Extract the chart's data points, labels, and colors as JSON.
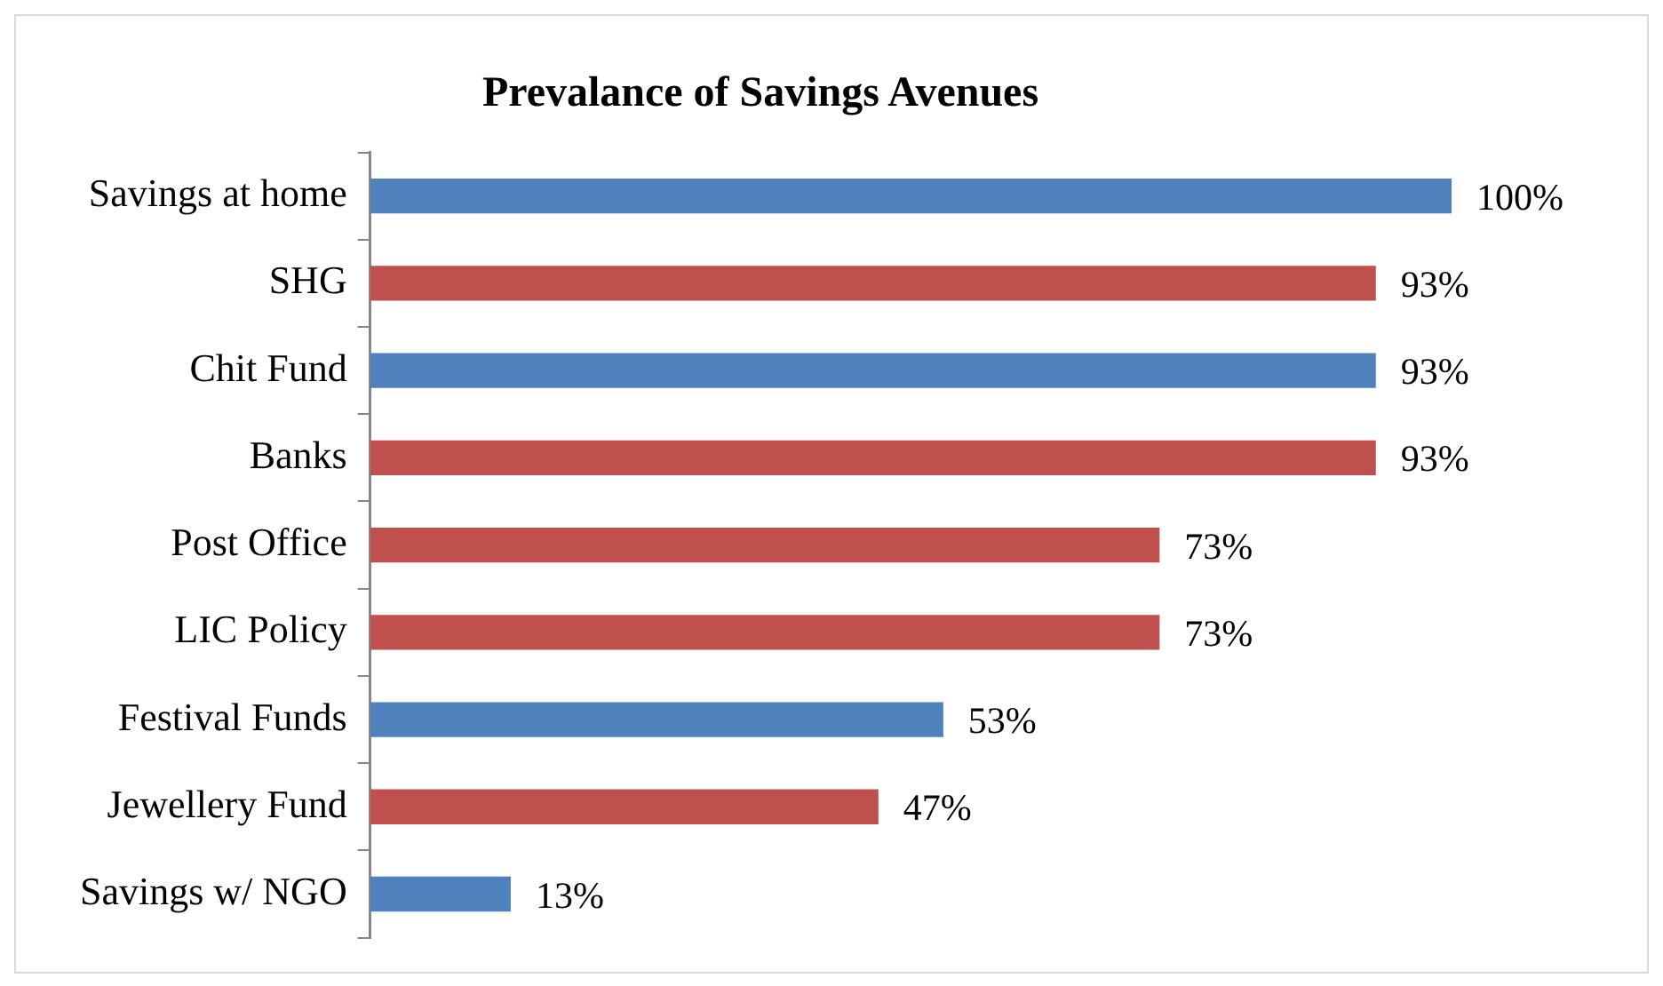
{
  "chart_data": {
    "type": "bar",
    "orientation": "horizontal",
    "title": "Prevalance of Savings Avenues",
    "categories": [
      "Savings at home",
      "SHG",
      "Chit Fund",
      "Banks",
      "Post Office",
      "LIC Policy",
      "Festival Funds",
      "Jewellery Fund",
      "Savings w/ NGO"
    ],
    "values": [
      100,
      93,
      93,
      93,
      73,
      73,
      53,
      47,
      13
    ],
    "colors": [
      "#4f81bd",
      "#c0504d",
      "#4f81bd",
      "#c0504d",
      "#c0504d",
      "#c0504d",
      "#4f81bd",
      "#c0504d",
      "#4f81bd"
    ],
    "value_labels": [
      "100%",
      "93%",
      "93%",
      "93%",
      "73%",
      "73%",
      "53%",
      "47%",
      "13%"
    ],
    "legend": false
  }
}
